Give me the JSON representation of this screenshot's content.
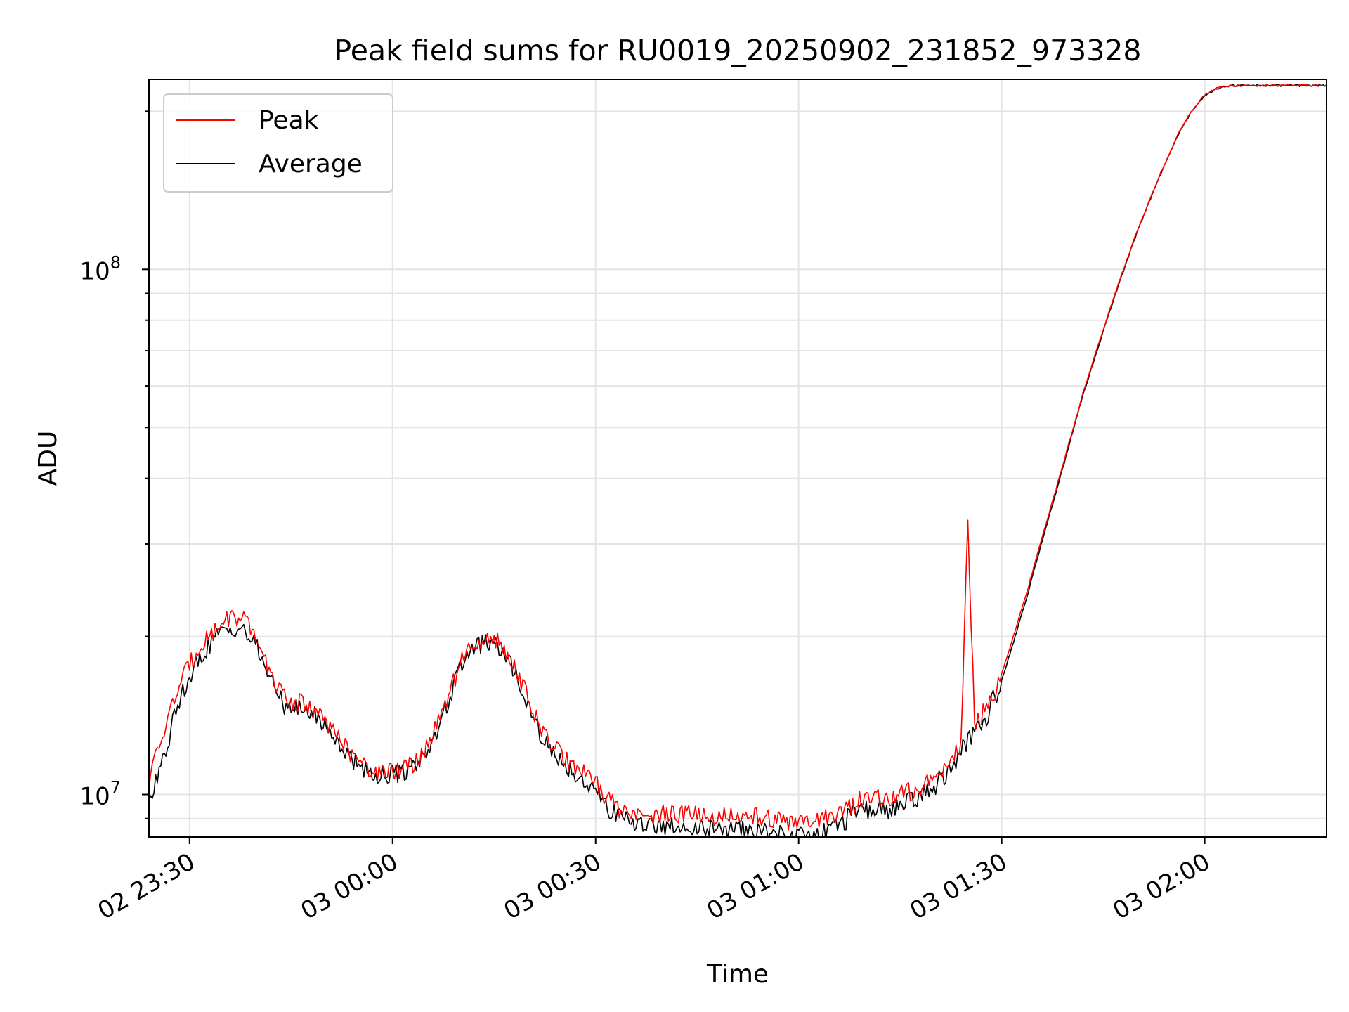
{
  "chart_data": {
    "type": "line",
    "title": "Peak field sums for RU0019_20250902_231852_973328",
    "xlabel": "Time",
    "ylabel": "ADU",
    "y_scale": "log",
    "grid": true,
    "legend_position": "top-left",
    "x_range": [
      "02 23:24",
      "03 02:18"
    ],
    "xlim": [
      "2025-09-02T23:24",
      "2025-09-03T02:18"
    ],
    "ylim": [
      8300000.0,
      230000000
    ],
    "x_ticks": [
      "02 23:30",
      "03 00:00",
      "03 00:30",
      "03 01:00",
      "03 01:30",
      "03 02:00"
    ],
    "y_ticks": [
      {
        "value": 10000000,
        "base": "10",
        "exp": "7"
      },
      {
        "value": 100000000,
        "base": "10",
        "exp": "8"
      }
    ],
    "series": [
      {
        "name": "Peak",
        "color": "#ff0000",
        "x": [
          "23:24",
          "23:26",
          "23:28",
          "23:30",
          "23:32",
          "23:34",
          "23:36",
          "23:38",
          "23:40",
          "23:42",
          "23:44",
          "23:46",
          "23:48",
          "23:50",
          "23:52",
          "23:54",
          "23:56",
          "23:58",
          "00:00",
          "00:02",
          "00:04",
          "00:06",
          "00:08",
          "00:10",
          "00:12",
          "00:14",
          "00:16",
          "00:18",
          "00:20",
          "00:22",
          "00:24",
          "00:26",
          "00:28",
          "00:30",
          "00:32",
          "00:34",
          "00:36",
          "00:38",
          "00:40",
          "00:42",
          "00:44",
          "00:46",
          "00:48",
          "00:50",
          "00:52",
          "00:54",
          "00:56",
          "00:58",
          "01:00",
          "01:02",
          "01:04",
          "01:06",
          "01:08",
          "01:10",
          "01:12",
          "01:14",
          "01:16",
          "01:18",
          "01:20",
          "01:22",
          "01:24",
          "01:25",
          "01:26",
          "01:28",
          "01:30",
          "01:32",
          "01:34",
          "01:36",
          "01:38",
          "01:40",
          "01:42",
          "01:44",
          "01:46",
          "01:48",
          "01:50",
          "01:52",
          "01:54",
          "01:56",
          "01:58",
          "02:00",
          "02:02",
          "02:04",
          "02:06",
          "02:08",
          "02:10",
          "02:12",
          "02:14",
          "02:16",
          "02:18"
        ],
        "values": [
          10500000,
          13000000,
          15500000,
          17800000,
          19500000,
          20800000,
          21800000,
          21500000,
          19600000,
          16800000,
          15300000,
          15000000,
          14700000,
          13900000,
          12800000,
          11800000,
          11200000,
          11000000,
          11000000,
          11200000,
          11700000,
          13000000,
          15000000,
          17800000,
          19600000,
          20000000,
          19400000,
          17800000,
          15200000,
          13200000,
          12200000,
          11500000,
          11000000,
          10500000,
          9700000,
          9300000,
          9100000,
          9100000,
          9200000,
          9200000,
          9150000,
          9100000,
          9100000,
          9050000,
          9050000,
          9050000,
          9000000,
          8900000,
          8850000,
          8850000,
          9000000,
          9300000,
          9600000,
          9800000,
          9850000,
          9900000,
          10100000,
          10400000,
          10900000,
          11500000,
          12500000,
          33000000,
          13500000,
          14800000,
          17000000,
          20500000,
          25000000,
          31000000,
          38000000,
          47000000,
          58000000,
          70000000,
          84000000,
          100000000,
          118000000,
          137000000,
          158000000,
          180000000,
          200000000,
          215000000,
          222000000,
          224000000,
          224000000,
          224000000,
          224000000,
          224000000,
          224000000,
          224000000,
          224000000
        ]
      },
      {
        "name": "Average",
        "color": "#000000",
        "x": [
          "23:24",
          "23:26",
          "23:28",
          "23:30",
          "23:32",
          "23:34",
          "23:36",
          "23:38",
          "23:40",
          "23:42",
          "23:44",
          "23:46",
          "23:48",
          "23:50",
          "23:52",
          "23:54",
          "23:56",
          "23:58",
          "00:00",
          "00:02",
          "00:04",
          "00:06",
          "00:08",
          "00:10",
          "00:12",
          "00:14",
          "00:16",
          "00:18",
          "00:20",
          "00:22",
          "00:24",
          "00:26",
          "00:28",
          "00:30",
          "00:32",
          "00:34",
          "00:36",
          "00:38",
          "00:40",
          "00:42",
          "00:44",
          "00:46",
          "00:48",
          "00:50",
          "00:52",
          "00:54",
          "00:56",
          "00:58",
          "01:00",
          "01:02",
          "01:04",
          "01:06",
          "01:08",
          "01:10",
          "01:12",
          "01:14",
          "01:16",
          "01:18",
          "01:20",
          "01:22",
          "01:24",
          "01:25",
          "01:26",
          "01:28",
          "01:30",
          "01:32",
          "01:34",
          "01:36",
          "01:38",
          "01:40",
          "01:42",
          "01:44",
          "01:46",
          "01:48",
          "01:50",
          "01:52",
          "01:54",
          "01:56",
          "01:58",
          "02:00",
          "02:02",
          "02:04",
          "02:06",
          "02:08",
          "02:10",
          "02:12",
          "02:14",
          "02:16",
          "02:18"
        ],
        "values": [
          9600000,
          11500000,
          14500000,
          16800000,
          18600000,
          20000000,
          20800000,
          20600000,
          19000000,
          16500000,
          14800000,
          14600000,
          14300000,
          13600000,
          12500000,
          11600000,
          11100000,
          10900000,
          10900000,
          11100000,
          11600000,
          12800000,
          14800000,
          17400000,
          19200000,
          19400000,
          18900000,
          17300000,
          14900000,
          12900000,
          11900000,
          11200000,
          10700000,
          10100000,
          9400000,
          9000000,
          8800000,
          8750000,
          8750000,
          8700000,
          8650000,
          8600000,
          8600000,
          8550000,
          8550000,
          8500000,
          8500000,
          8450000,
          8400000,
          8400000,
          8500000,
          8800000,
          9100000,
          9300000,
          9350000,
          9400000,
          9600000,
          9900000,
          10400000,
          11000000,
          12000000,
          12700000,
          13000000,
          14300000,
          16500000,
          20000000,
          24500000,
          30500000,
          37500000,
          46500000,
          57500000,
          69500000,
          83500000,
          99500000,
          117500000,
          136500000,
          157500000,
          179500000,
          199500000,
          214500000,
          221500000,
          224000000,
          224000000,
          224000000,
          224000000,
          224000000,
          224000000,
          224000000,
          224000000
        ]
      }
    ]
  }
}
